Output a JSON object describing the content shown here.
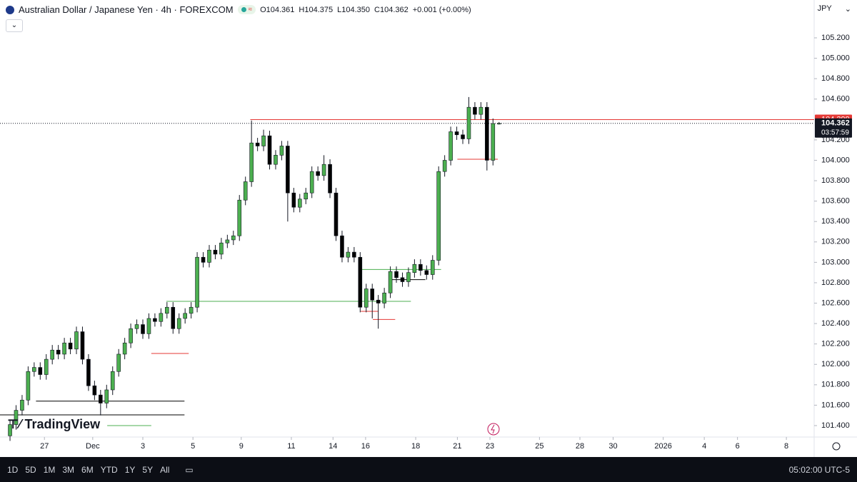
{
  "chart_data": {
    "type": "candlestick",
    "title": "Australian Dollar / Japanese Yen · 4h · FOREXCOM",
    "ohlc_labels": [
      "O104.361",
      "H104.375",
      "L104.350",
      "C104.362"
    ],
    "change_label": "+0.001 (+0.00%)",
    "currency": "JPY",
    "brand": "TradingView",
    "countdown": "03:57:59",
    "clock": "05:02:00 UTC-5",
    "ranges": [
      "1D",
      "5D",
      "1M",
      "3M",
      "6M",
      "YTD",
      "1Y",
      "5Y",
      "All"
    ],
    "up_color": "#4caf50",
    "down_color": "#000000",
    "open": [
      101.3,
      101.41,
      101.55,
      101.65,
      101.93,
      101.97,
      101.9,
      102.05,
      102.14,
      102.1,
      102.21,
      102.15,
      102.32,
      102.05,
      101.79,
      101.7,
      101.62,
      101.75,
      101.93,
      102.1,
      102.21,
      102.35,
      102.39,
      102.3,
      102.45,
      102.42,
      102.5,
      102.56,
      102.35,
      102.45,
      102.5,
      102.56,
      103.05,
      103.0,
      103.12,
      103.08,
      103.19,
      103.22,
      103.26,
      103.61,
      103.79,
      104.17,
      104.14,
      104.24,
      103.96,
      104.05,
      104.14,
      103.68,
      103.54,
      103.62,
      103.68,
      103.89,
      103.85,
      103.96,
      103.68,
      103.26,
      103.05,
      103.1,
      103.05,
      102.56,
      102.74,
      102.63,
      102.6,
      102.7,
      102.91,
      102.85,
      102.81,
      102.9,
      102.98,
      102.92,
      102.88,
      103.02,
      103.89,
      104.0,
      104.28,
      104.25,
      104.21,
      104.52,
      104.45,
      104.52,
      104.0,
      104.361
    ],
    "high": [
      101.46,
      101.6,
      101.7,
      101.98,
      102.02,
      102.02,
      102.1,
      102.19,
      102.19,
      102.26,
      102.26,
      102.37,
      102.37,
      102.1,
      101.84,
      101.75,
      101.8,
      101.98,
      102.15,
      102.26,
      102.4,
      102.44,
      102.44,
      102.5,
      102.5,
      102.55,
      102.61,
      102.61,
      102.5,
      102.55,
      102.61,
      103.1,
      103.1,
      103.17,
      103.17,
      103.24,
      103.27,
      103.31,
      103.66,
      103.84,
      104.39,
      104.22,
      104.3,
      104.29,
      104.1,
      104.19,
      104.19,
      103.73,
      103.67,
      103.73,
      103.94,
      103.94,
      104.05,
      104.01,
      103.73,
      103.31,
      103.15,
      103.15,
      103.1,
      102.79,
      102.79,
      102.68,
      102.75,
      102.96,
      102.96,
      102.9,
      102.95,
      103.03,
      103.03,
      102.97,
      103.07,
      103.94,
      104.05,
      104.33,
      104.33,
      104.3,
      104.62,
      104.57,
      104.57,
      104.57,
      104.41,
      104.375
    ],
    "low": [
      101.25,
      101.36,
      101.5,
      101.6,
      101.88,
      101.85,
      101.85,
      102.0,
      102.05,
      102.05,
      102.1,
      102.1,
      102.0,
      101.74,
      101.65,
      101.5,
      101.57,
      101.7,
      101.88,
      102.05,
      102.16,
      102.3,
      102.25,
      102.25,
      102.37,
      102.37,
      102.45,
      102.3,
      102.3,
      102.4,
      102.45,
      102.51,
      102.95,
      102.95,
      103.03,
      103.03,
      103.14,
      103.17,
      103.21,
      103.56,
      103.74,
      104.09,
      104.09,
      103.91,
      103.91,
      104.0,
      103.4,
      103.49,
      103.49,
      103.57,
      103.63,
      103.8,
      103.8,
      103.63,
      103.21,
      103.0,
      103.0,
      103.0,
      102.51,
      102.51,
      102.45,
      102.35,
      102.55,
      102.65,
      102.8,
      102.76,
      102.76,
      102.85,
      102.87,
      102.83,
      102.83,
      102.97,
      103.84,
      103.95,
      104.2,
      104.16,
      104.16,
      104.4,
      104.4,
      103.9,
      103.95,
      104.35
    ],
    "close": [
      101.41,
      101.55,
      101.65,
      101.93,
      101.97,
      101.9,
      102.05,
      102.14,
      102.1,
      102.21,
      102.15,
      102.32,
      102.05,
      101.79,
      101.7,
      101.62,
      101.75,
      101.93,
      102.1,
      102.21,
      102.35,
      102.39,
      102.3,
      102.45,
      102.42,
      102.5,
      102.56,
      102.35,
      102.45,
      102.5,
      102.56,
      103.05,
      103.0,
      103.12,
      103.08,
      103.19,
      103.22,
      103.26,
      103.61,
      103.79,
      104.17,
      104.14,
      104.24,
      103.96,
      104.05,
      104.14,
      103.68,
      103.54,
      103.62,
      103.68,
      103.89,
      103.85,
      103.96,
      103.68,
      103.26,
      103.05,
      103.1,
      103.05,
      102.56,
      102.74,
      102.63,
      102.6,
      102.7,
      102.91,
      102.85,
      102.81,
      102.9,
      102.98,
      102.92,
      102.88,
      103.02,
      103.89,
      104.0,
      104.28,
      104.25,
      104.21,
      104.52,
      104.45,
      104.52,
      104.0,
      104.36,
      104.362
    ],
    "levels": [
      {
        "price": 101.64,
        "from": 4.3,
        "to": 28.9,
        "color": "#000000"
      },
      {
        "price": 101.505,
        "from": -1.66,
        "to": 28.9,
        "color": "#000000"
      },
      {
        "price": 101.4,
        "from": 16.1,
        "to": 23.4,
        "color": "#4caf50"
      },
      {
        "price": 102.107,
        "from": 23.4,
        "to": 29.6,
        "color": "#e53935"
      },
      {
        "price": 102.618,
        "from": 25.9,
        "to": 66.4,
        "color": "#4caf50"
      },
      {
        "price": 102.52,
        "from": 58.1,
        "to": 61,
        "color": "#e53935"
      },
      {
        "price": 102.44,
        "from": 60.1,
        "to": 63.8,
        "color": "#e53935"
      },
      {
        "price": 102.83,
        "from": 62.8,
        "to": 68.8,
        "color": "#000000"
      },
      {
        "price": 102.93,
        "from": 58.1,
        "to": 71.4,
        "color": "#4caf50"
      },
      {
        "price": 104.01,
        "from": 74.1,
        "to": 80.8,
        "color": "#e53935"
      },
      {
        "price": 104.399,
        "from": 39.8,
        "to": 133.2,
        "color": "#e53935"
      }
    ],
    "xlim": [
      -1.66,
      133.2
    ],
    "ylim": [
      101.288,
      105.571
    ],
    "xticks": [
      {
        "value": 5.7,
        "label": "27"
      },
      {
        "value": 13.7,
        "label": "Dec"
      },
      {
        "value": 22.0,
        "label": "3"
      },
      {
        "value": 30.3,
        "label": "5"
      },
      {
        "value": 38.3,
        "label": "9"
      },
      {
        "value": 46.6,
        "label": "11"
      },
      {
        "value": 53.5,
        "label": "14"
      },
      {
        "value": 58.9,
        "label": "16"
      },
      {
        "value": 67.2,
        "label": "18"
      },
      {
        "value": 74.1,
        "label": "21"
      },
      {
        "value": 79.5,
        "label": "23"
      },
      {
        "value": 87.7,
        "label": "25"
      },
      {
        "value": 94.4,
        "label": "28"
      },
      {
        "value": 99.9,
        "label": "30"
      },
      {
        "value": 108.2,
        "label": "2026"
      },
      {
        "value": 115.0,
        "label": "4"
      },
      {
        "value": 120.5,
        "label": "6"
      },
      {
        "value": 128.6,
        "label": "8"
      }
    ],
    "yticks": [
      {
        "value": 101.4,
        "label": "101.400"
      },
      {
        "value": 101.6,
        "label": "101.600"
      },
      {
        "value": 101.8,
        "label": "101.800"
      },
      {
        "value": 102.0,
        "label": "102.000"
      },
      {
        "value": 102.2,
        "label": "102.200"
      },
      {
        "value": 102.4,
        "label": "102.400"
      },
      {
        "value": 102.6,
        "label": "102.600"
      },
      {
        "value": 102.8,
        "label": "102.800"
      },
      {
        "value": 103.0,
        "label": "103.000"
      },
      {
        "value": 103.2,
        "label": "103.200"
      },
      {
        "value": 103.4,
        "label": "103.400"
      },
      {
        "value": 103.6,
        "label": "103.600"
      },
      {
        "value": 103.8,
        "label": "103.800"
      },
      {
        "value": 104.0,
        "label": "104.000"
      },
      {
        "value": 104.2,
        "label": "104.200"
      },
      {
        "value": 104.6,
        "label": "104.600"
      },
      {
        "value": 104.8,
        "label": "104.800"
      },
      {
        "value": 105.0,
        "label": "105.000"
      },
      {
        "value": 105.2,
        "label": "105.200"
      }
    ]
  }
}
